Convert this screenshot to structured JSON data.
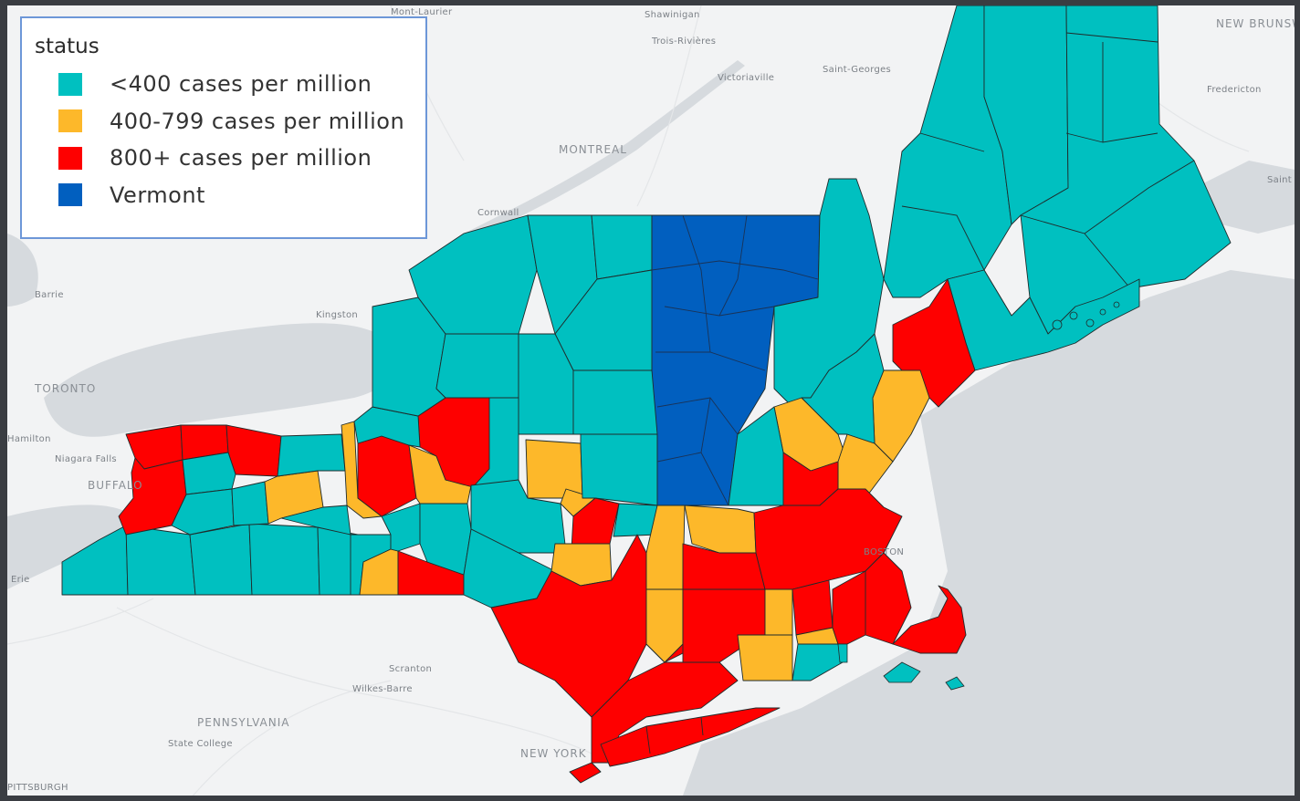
{
  "legend": {
    "title": "status",
    "items": [
      {
        "label": "<400 cases per million",
        "color": "#00c0c0"
      },
      {
        "label": "400-799 cases per million",
        "color": "#fdb82a"
      },
      {
        "label": "800+ cases per million",
        "color": "#fe0000"
      },
      {
        "label": "Vermont",
        "color": "#015fbf"
      }
    ]
  },
  "places": {
    "mont_laurier": "Mont-Laurier",
    "shawinigan": "Shawinigan",
    "trois_rivieres": "Trois-Rivières",
    "victoriaville": "Victoriaville",
    "saint_georges": "Saint-Georges",
    "new_brunswick": "NEW BRUNSWICK",
    "fredericton": "Fredericton",
    "saint": "Saint",
    "montreal": "MONTREAL",
    "cornwall": "Cornwall",
    "barrie": "Barrie",
    "kingston": "Kingston",
    "toronto": "TORONTO",
    "hamilton": "Hamilton",
    "niagara_falls": "Niagara Falls",
    "buffalo": "BUFFALO",
    "erie": "Erie",
    "boston": "BOSTON",
    "scranton": "Scranton",
    "wilkes_barre": "Wilkes-Barre",
    "pennsylvania": "PENNSYLVANIA",
    "state_college": "State College",
    "new_york": "NEW YORK",
    "pittsburgh": "PITTSBURGH"
  }
}
